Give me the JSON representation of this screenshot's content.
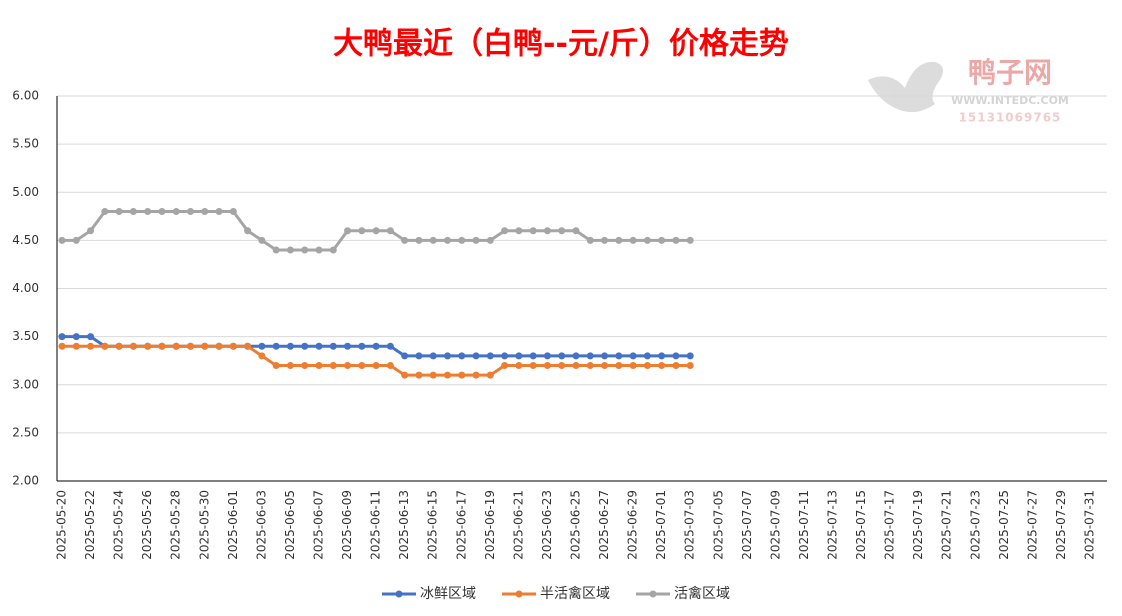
{
  "chart_data": {
    "type": "line",
    "title": "大鸭最近（白鸭--元/斤）价格走势",
    "watermark": {
      "name": "鸭子网",
      "url": "WWW.INTEDC.COM",
      "phone": "15131069765"
    },
    "categories": [
      "2025-05-20",
      null,
      "2025-05-22",
      null,
      "2025-05-24",
      null,
      "2025-05-26",
      null,
      "2025-05-28",
      null,
      "2025-05-30",
      null,
      "2025-06-01",
      null,
      "2025-06-03",
      null,
      "2025-06-05",
      null,
      "2025-06-07",
      null,
      "2025-06-09",
      null,
      "2025-06-11",
      null,
      "2025-06-13",
      null,
      "2025-06-15",
      null,
      "2025-06-17",
      null,
      "2025-06-19",
      null,
      "2025-06-21",
      null,
      "2025-06-23",
      null,
      "2025-06-25",
      null,
      "2025-06-27",
      null,
      "2025-06-29",
      null,
      "2025-07-01",
      null,
      "2025-07-03",
      null,
      "2025-07-05",
      null,
      "2025-07-07",
      null,
      "2025-07-09",
      null,
      "2025-07-11",
      null,
      "2025-07-13",
      null,
      "2025-07-15",
      null,
      "2025-07-17",
      null,
      "2025-07-19",
      null,
      "2025-07-21",
      null,
      "2025-07-23",
      null,
      "2025-07-25",
      null,
      "2025-07-27",
      null,
      "2025-07-29",
      null,
      "2025-07-31"
    ],
    "series": [
      {
        "name": "冰鲜区域",
        "color": "#4472c4",
        "values": [
          3.5,
          3.5,
          3.5,
          3.4,
          3.4,
          3.4,
          3.4,
          3.4,
          3.4,
          3.4,
          3.4,
          3.4,
          3.4,
          3.4,
          3.4,
          3.4,
          3.4,
          3.4,
          3.4,
          3.4,
          3.4,
          3.4,
          3.4,
          3.4,
          3.3,
          3.3,
          3.3,
          3.3,
          3.3,
          3.3,
          3.3,
          3.3,
          3.3,
          3.3,
          3.3,
          3.3,
          3.3,
          3.3,
          3.3,
          3.3,
          3.3,
          3.3,
          3.3,
          3.3,
          3.3,
          null,
          null,
          null,
          null,
          null,
          null,
          null,
          null,
          null,
          null,
          null,
          null,
          null,
          null,
          null,
          null,
          null,
          null,
          null,
          null,
          null,
          null,
          null,
          null,
          null,
          null,
          null,
          null
        ]
      },
      {
        "name": "半活禽区域",
        "color": "#ed7d31",
        "values": [
          3.4,
          3.4,
          3.4,
          3.4,
          3.4,
          3.4,
          3.4,
          3.4,
          3.4,
          3.4,
          3.4,
          3.4,
          3.4,
          3.4,
          3.3,
          3.2,
          3.2,
          3.2,
          3.2,
          3.2,
          3.2,
          3.2,
          3.2,
          3.2,
          3.1,
          3.1,
          3.1,
          3.1,
          3.1,
          3.1,
          3.1,
          3.2,
          3.2,
          3.2,
          3.2,
          3.2,
          3.2,
          3.2,
          3.2,
          3.2,
          3.2,
          3.2,
          3.2,
          3.2,
          3.2,
          null,
          null,
          null,
          null,
          null,
          null,
          null,
          null,
          null,
          null,
          null,
          null,
          null,
          null,
          null,
          null,
          null,
          null,
          null,
          null,
          null,
          null,
          null,
          null,
          null,
          null,
          null,
          null
        ]
      },
      {
        "name": "活禽区域",
        "color": "#a5a5a5",
        "values": [
          4.5,
          4.5,
          4.6,
          4.8,
          4.8,
          4.8,
          4.8,
          4.8,
          4.8,
          4.8,
          4.8,
          4.8,
          4.8,
          4.6,
          4.5,
          4.4,
          4.4,
          4.4,
          4.4,
          4.4,
          4.6,
          4.6,
          4.6,
          4.6,
          4.5,
          4.5,
          4.5,
          4.5,
          4.5,
          4.5,
          4.5,
          4.6,
          4.6,
          4.6,
          4.6,
          4.6,
          4.6,
          4.5,
          4.5,
          4.5,
          4.5,
          4.5,
          4.5,
          4.5,
          4.5,
          null,
          null,
          null,
          null,
          null,
          null,
          null,
          null,
          null,
          null,
          null,
          null,
          null,
          null,
          null,
          null,
          null,
          null,
          null,
          null,
          null,
          null,
          null,
          null,
          null,
          null,
          null,
          null
        ]
      }
    ],
    "ylim": [
      2,
      6
    ],
    "yticks": [
      {
        "value": 2,
        "label": "2.00"
      },
      {
        "value": 2.5,
        "label": "2.50"
      },
      {
        "value": 3,
        "label": "3.00"
      },
      {
        "value": 3.5,
        "label": "3.50"
      },
      {
        "value": 4,
        "label": "4.00"
      },
      {
        "value": 4.5,
        "label": "4.50"
      },
      {
        "value": 5,
        "label": "5.00"
      },
      {
        "value": 5.5,
        "label": "5.50"
      },
      {
        "value": 6,
        "label": "6.00"
      }
    ],
    "grid": true,
    "legend": "bottom"
  }
}
